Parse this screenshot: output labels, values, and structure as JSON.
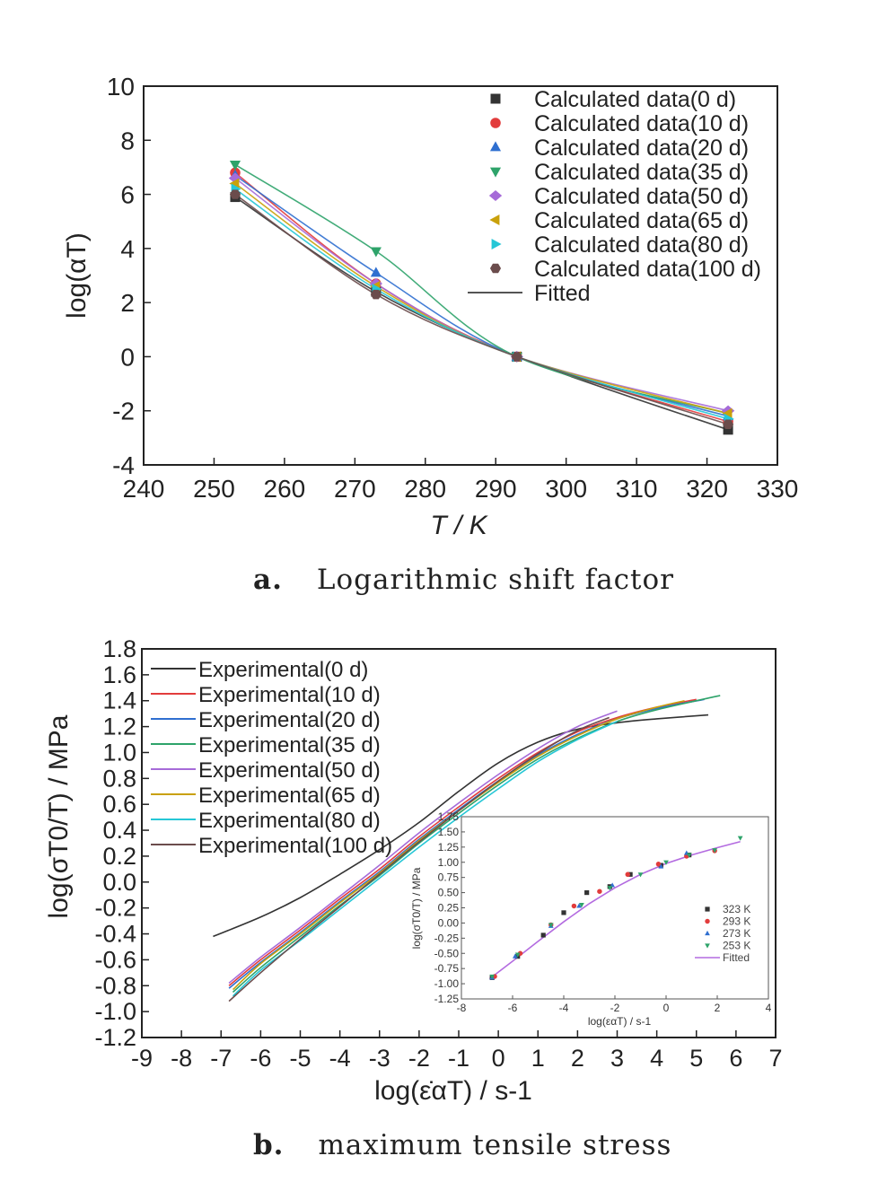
{
  "colors": {
    "d0": "#333333",
    "d10": "#e23c3c",
    "d20": "#2f6fd0",
    "d35": "#2ea36a",
    "d50": "#a66bd8",
    "d65": "#c9a10b",
    "d80": "#26c7d6",
    "d100": "#6b4c4c",
    "fitted": "#555555",
    "inset_fitted": "#b36be0"
  },
  "captions": {
    "a_tag": "a.",
    "a_text": "Logarithmic shift factor",
    "b_tag": "b.",
    "b_text": "maximum tensile stress"
  },
  "chart_data": [
    {
      "type": "scatter",
      "panel": "a",
      "xlabel": "T / K",
      "ylabel": "log(αT)",
      "xlim": [
        240,
        330
      ],
      "ylim": [
        -4,
        10
      ],
      "xticks": [
        240,
        250,
        260,
        270,
        280,
        290,
        300,
        310,
        320,
        330
      ],
      "yticks": [
        -4,
        -2,
        0,
        2,
        4,
        6,
        8,
        10
      ],
      "legend_position": "top-right",
      "x": [
        253,
        273,
        293,
        323
      ],
      "series": [
        {
          "name": "Calculated data(0 d)",
          "marker": "square",
          "color_key": "d0",
          "values": [
            5.9,
            2.4,
            0,
            -2.7
          ]
        },
        {
          "name": "Calculated data(10 d)",
          "marker": "circle",
          "color_key": "d10",
          "values": [
            6.8,
            2.7,
            0,
            -2.4
          ]
        },
        {
          "name": "Calculated data(20 d)",
          "marker": "triangle-up",
          "color_key": "d20",
          "values": [
            6.7,
            3.1,
            0,
            -2.2
          ]
        },
        {
          "name": "Calculated data(35 d)",
          "marker": "triangle-down",
          "color_key": "d35",
          "values": [
            7.1,
            3.9,
            0,
            -2.1
          ]
        },
        {
          "name": "Calculated data(50 d)",
          "marker": "diamond",
          "color_key": "d50",
          "values": [
            6.6,
            2.7,
            0,
            -2.0
          ]
        },
        {
          "name": "Calculated data(65 d)",
          "marker": "triangle-left",
          "color_key": "d65",
          "values": [
            6.4,
            2.6,
            0,
            -2.1
          ]
        },
        {
          "name": "Calculated data(80 d)",
          "marker": "triangle-right",
          "color_key": "d80",
          "values": [
            6.2,
            2.5,
            0,
            -2.3
          ]
        },
        {
          "name": "Calculated data(100 d)",
          "marker": "hexagon",
          "color_key": "d100",
          "values": [
            6.0,
            2.3,
            0,
            -2.5
          ]
        }
      ],
      "fitted_label": "Fitted"
    },
    {
      "type": "line",
      "panel": "b",
      "xlabel": "log(ε̇αT) / s-1",
      "ylabel": "log(σT0/T) / MPa",
      "xlim": [
        -9,
        7
      ],
      "ylim": [
        -1.2,
        1.8
      ],
      "xticks": [
        -9,
        -8,
        -7,
        -6,
        -5,
        -4,
        -3,
        -2,
        -1,
        0,
        1,
        2,
        3,
        4,
        5,
        6,
        7
      ],
      "yticks": [
        "1.8",
        "1.6",
        "1.4",
        "1.2",
        "1.0",
        "0.8",
        "0.6",
        "0.4",
        "0.2",
        "0.0",
        "-0.2",
        "-0.4",
        "-0.6",
        "-0.8",
        "-1.0",
        "-1.2"
      ],
      "legend_position": "top-left",
      "series": [
        {
          "name": "Experimental(0 d)",
          "color_key": "d0",
          "x": [
            -7.2,
            -6,
            -5,
            -4,
            -3,
            -2,
            -1,
            0,
            1,
            2,
            3,
            4,
            5.3
          ],
          "y": [
            -0.42,
            -0.27,
            -0.12,
            0.06,
            0.25,
            0.46,
            0.7,
            0.92,
            1.08,
            1.18,
            1.23,
            1.26,
            1.29
          ]
        },
        {
          "name": "Experimental(10 d)",
          "color_key": "d10",
          "x": [
            -6.8,
            -6,
            -5,
            -4,
            -3,
            -2,
            -1,
            0,
            1,
            2,
            3,
            4,
            5.0
          ],
          "y": [
            -0.8,
            -0.6,
            -0.37,
            -0.13,
            0.1,
            0.35,
            0.58,
            0.8,
            1.0,
            1.16,
            1.27,
            1.35,
            1.41
          ]
        },
        {
          "name": "Experimental(20 d)",
          "color_key": "d20",
          "x": [
            -6.8,
            -6,
            -5,
            -4,
            -3,
            -2,
            -1,
            0,
            1,
            2,
            3,
            4,
            5.2
          ],
          "y": [
            -0.82,
            -0.62,
            -0.39,
            -0.15,
            0.08,
            0.33,
            0.56,
            0.78,
            0.98,
            1.14,
            1.26,
            1.34,
            1.41
          ]
        },
        {
          "name": "Experimental(35 d)",
          "color_key": "d35",
          "x": [
            -6.7,
            -6,
            -5,
            -4,
            -3,
            -2,
            -1,
            0,
            1,
            2,
            3,
            4,
            5.6
          ],
          "y": [
            -0.85,
            -0.66,
            -0.42,
            -0.18,
            0.05,
            0.3,
            0.53,
            0.75,
            0.95,
            1.11,
            1.24,
            1.33,
            1.44
          ]
        },
        {
          "name": "Experimental(50 d)",
          "color_key": "d50",
          "x": [
            -6.8,
            -6,
            -5,
            -4,
            -3,
            -2,
            -1,
            0,
            1,
            2,
            3
          ],
          "y": [
            -0.78,
            -0.58,
            -0.35,
            -0.11,
            0.13,
            0.38,
            0.61,
            0.83,
            1.03,
            1.2,
            1.32
          ]
        },
        {
          "name": "Experimental(65 d)",
          "color_key": "d65",
          "x": [
            -6.7,
            -6,
            -5,
            -4,
            -3,
            -2,
            -1,
            0,
            1,
            2,
            3,
            4,
            4.7
          ],
          "y": [
            -0.83,
            -0.63,
            -0.4,
            -0.16,
            0.07,
            0.32,
            0.55,
            0.77,
            0.97,
            1.13,
            1.26,
            1.35,
            1.4
          ]
        },
        {
          "name": "Experimental(80 d)",
          "color_key": "d80",
          "x": [
            -6.7,
            -6,
            -5,
            -4,
            -3,
            -2,
            -1,
            0,
            1,
            2,
            3
          ],
          "y": [
            -0.88,
            -0.68,
            -0.45,
            -0.21,
            0.03,
            0.27,
            0.5,
            0.72,
            0.93,
            1.1,
            1.24
          ]
        },
        {
          "name": "Experimental(100 d)",
          "color_key": "d100",
          "x": [
            -6.8,
            -6,
            -5,
            -4,
            -3,
            -2,
            -1,
            0,
            1,
            2,
            2.8
          ],
          "y": [
            -0.92,
            -0.7,
            -0.44,
            -0.19,
            0.06,
            0.31,
            0.55,
            0.78,
            0.99,
            1.17,
            1.27
          ]
        }
      ],
      "inset": {
        "type": "scatter",
        "xlabel": "log(εαT) / s-1",
        "ylabel": "log(σT0/T) / MPa",
        "xlim": [
          -8,
          4
        ],
        "ylim": [
          -1.25,
          1.75
        ],
        "xticks": [
          "-8",
          "-6",
          "-4",
          "-2",
          "0",
          "2",
          "4"
        ],
        "yticks": [
          "1.75",
          "1.50",
          "1.25",
          "1.00",
          "0.75",
          "0.50",
          "0.25",
          "0.00",
          "-0.25",
          "-0.50",
          "-0.75",
          "-1.00",
          "-1.25"
        ],
        "series": [
          {
            "name": "323 K",
            "marker": "square",
            "color_key": "d0",
            "x": [
              -6.8,
              -5.8,
              -4.8,
              -4.0,
              -3.1,
              -2.2,
              -1.4,
              -0.2,
              0.9
            ],
            "y": [
              -0.9,
              -0.55,
              -0.2,
              0.17,
              0.5,
              0.6,
              0.8,
              0.95,
              1.12
            ]
          },
          {
            "name": "293 K",
            "marker": "circle",
            "color_key": "d10",
            "x": [
              -6.7,
              -5.7,
              -4.5,
              -3.6,
              -2.6,
              -1.5,
              -0.3,
              0.8,
              1.9
            ],
            "y": [
              -0.88,
              -0.5,
              -0.03,
              0.28,
              0.52,
              0.8,
              0.97,
              1.1,
              1.19
            ]
          },
          {
            "name": "273 K",
            "marker": "triangle-up",
            "color_key": "d20",
            "x": [
              -6.8,
              -5.9,
              -4.5,
              -3.4,
              -2.1,
              -0.2,
              0.8
            ],
            "y": [
              -0.9,
              -0.55,
              -0.05,
              0.28,
              0.62,
              0.93,
              1.15
            ]
          },
          {
            "name": "253 K",
            "marker": "triangle-down",
            "color_key": "d35",
            "x": [
              -6.8,
              -5.8,
              -4.5,
              -3.3,
              -2.2,
              -1.0,
              0.0,
              0.9,
              1.9,
              2.9
            ],
            "y": [
              -0.88,
              -0.52,
              -0.03,
              0.3,
              0.58,
              0.8,
              1.0,
              1.12,
              1.2,
              1.4
            ]
          }
        ],
        "fitted_label": "Fitted"
      }
    }
  ]
}
